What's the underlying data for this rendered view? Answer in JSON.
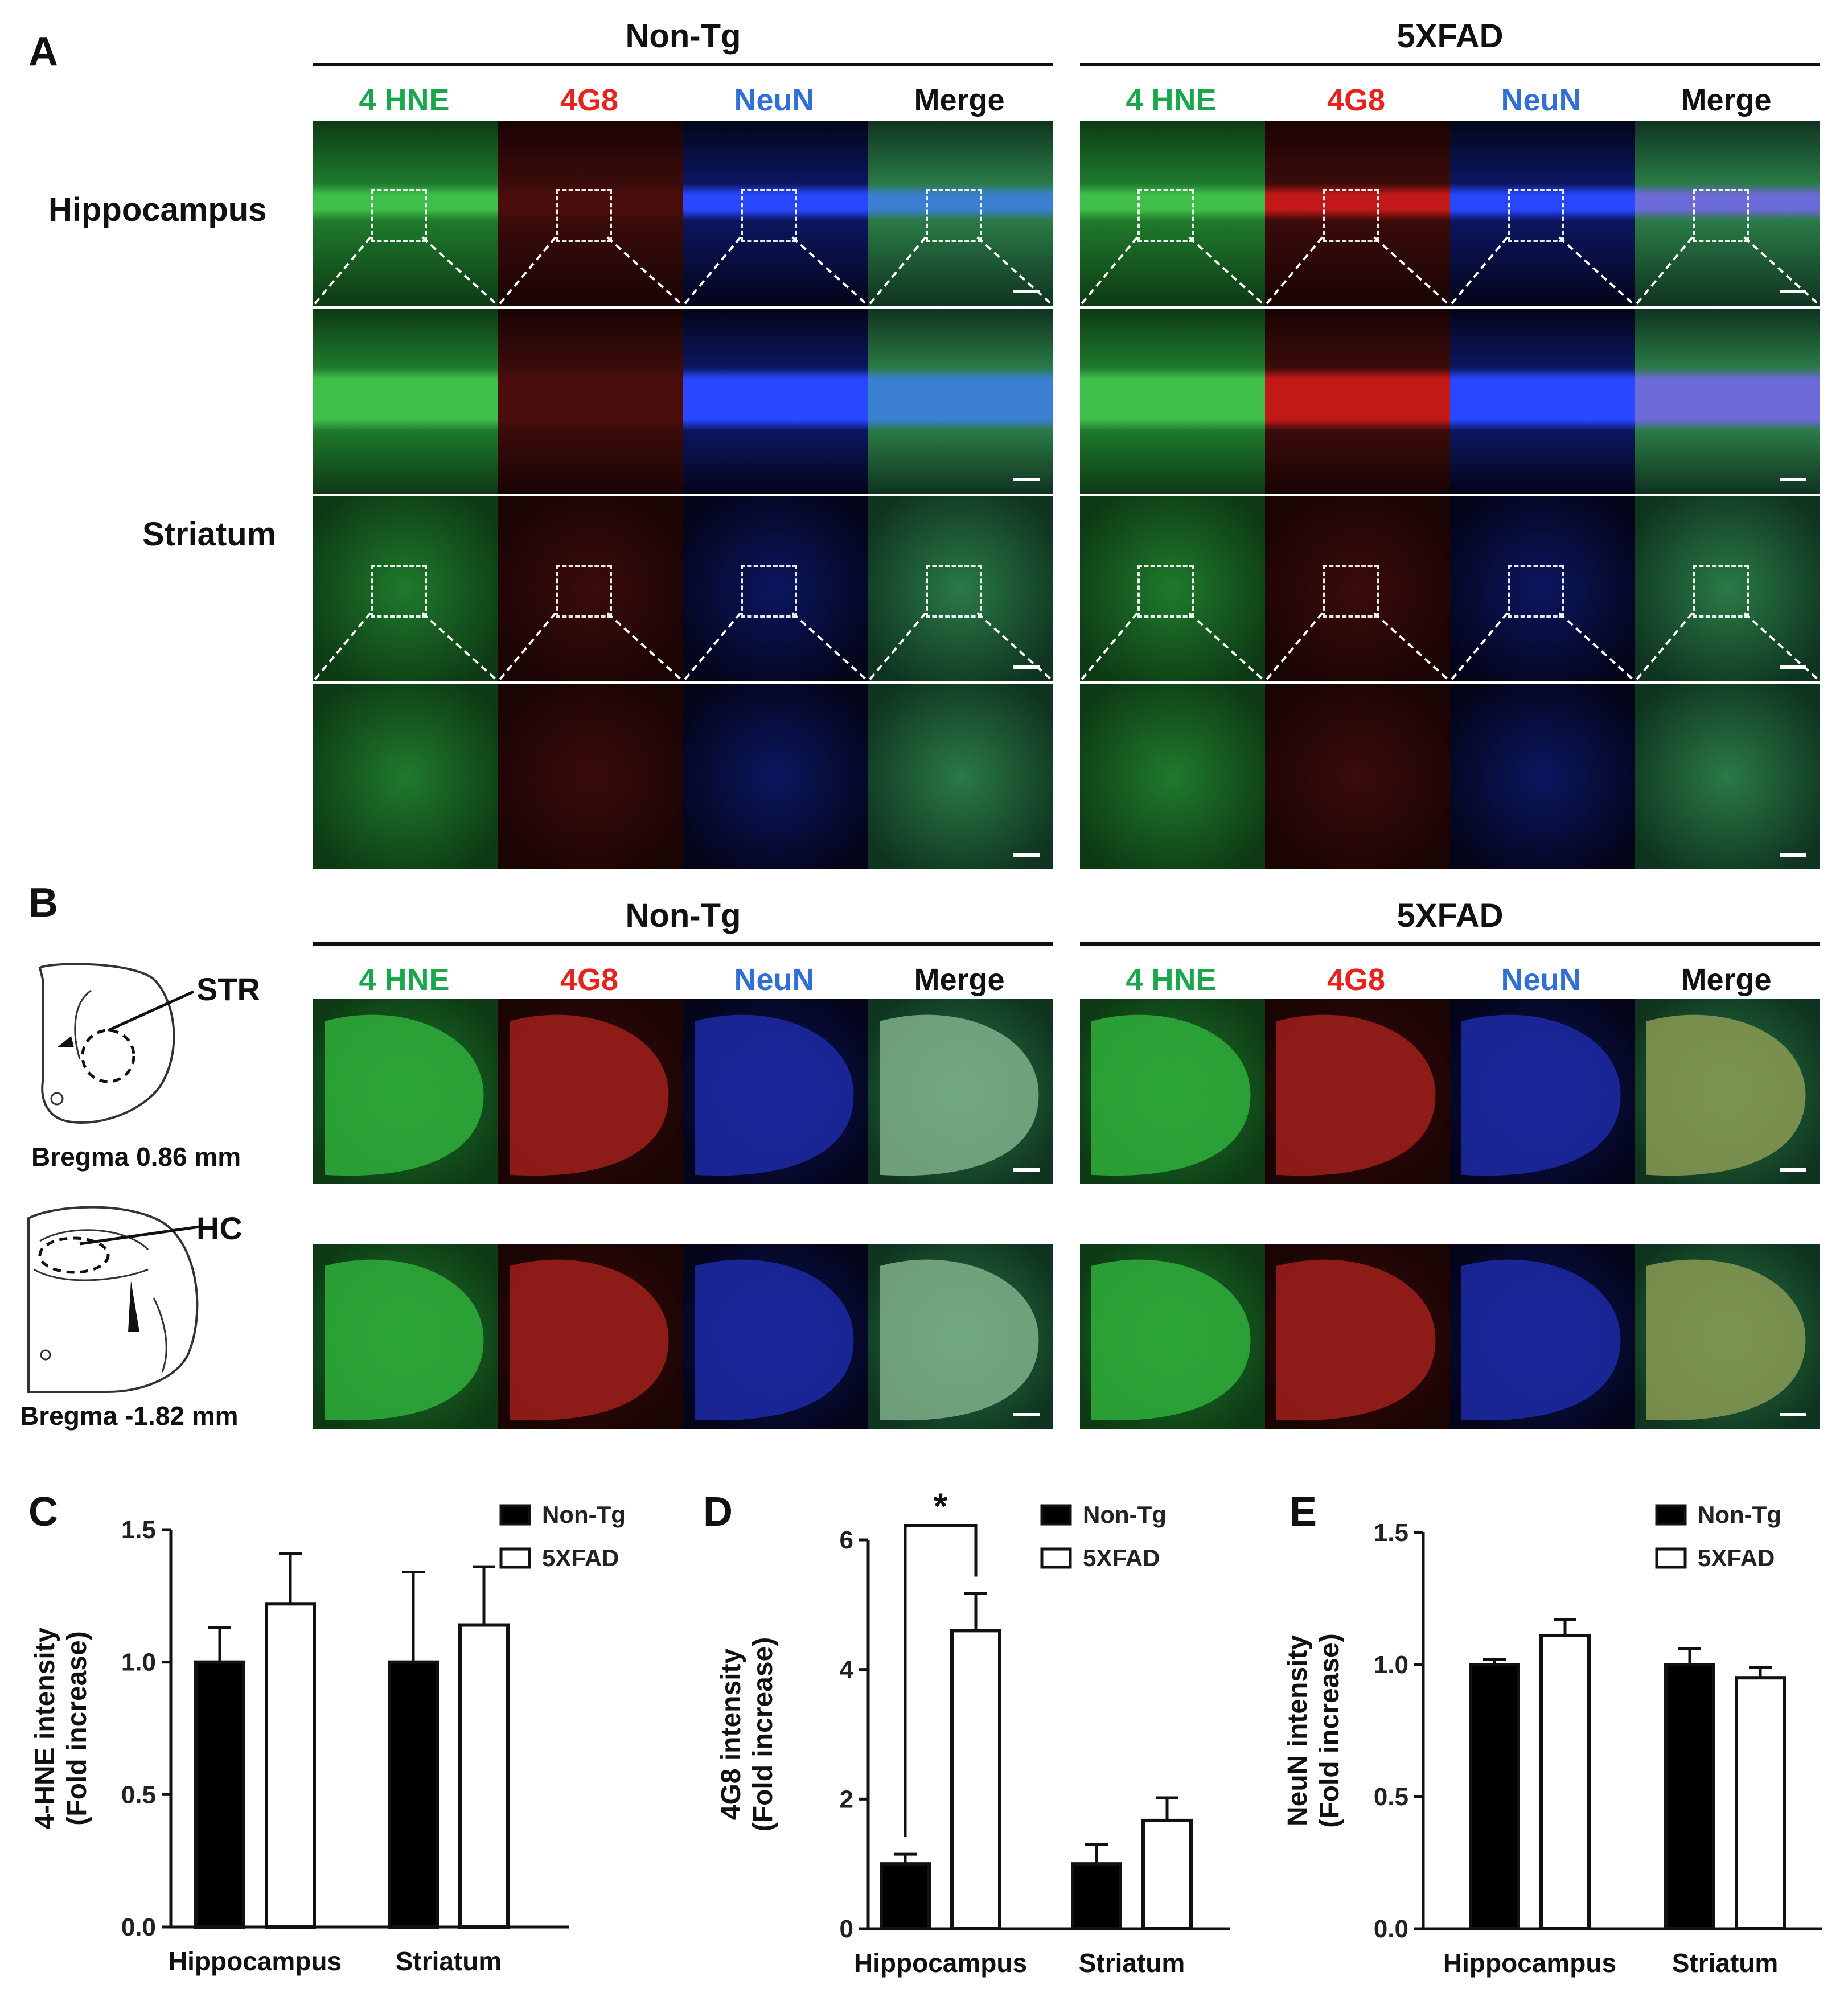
{
  "figure": {
    "panels": {
      "A": "A",
      "B": "B",
      "C": "C",
      "D": "D",
      "E": "E"
    },
    "groups": {
      "non_tg": "Non-Tg",
      "fxad": "5XFAD"
    },
    "channels": {
      "hne": "4 HNE",
      "g8": "4G8",
      "neun": "NeuN",
      "merge": "Merge"
    },
    "channel_colors": {
      "hne": "#1aa64a",
      "g8": "#e8221e",
      "neun": "#2f6fd6",
      "merge": "#111111"
    },
    "row_labels": {
      "hippocampus": "Hippocampus",
      "striatum": "Striatum"
    },
    "atlas": {
      "str_label": "STR",
      "hc_label": "HC",
      "bregma_str": "Bregma 0.86 mm",
      "bregma_hc": "Bregma -1.82 mm"
    }
  },
  "chart_data": [
    {
      "type": "bar",
      "panel": "C",
      "categories": [
        "Hippocampus",
        "Striatum"
      ],
      "ylabel": "4-HNE intensity\n(Fold increase)",
      "ylim": [
        0,
        1.5
      ],
      "yticks": [
        "0.0",
        "0.5",
        "1.0",
        "1.5"
      ],
      "legend": "top-right",
      "series": [
        {
          "name": "Non-Tg",
          "values": [
            1.0,
            1.0
          ],
          "errors": [
            0.13,
            0.34
          ],
          "fill": "#000000"
        },
        {
          "name": "5XFAD",
          "values": [
            1.22,
            1.14
          ],
          "errors": [
            0.19,
            0.22
          ],
          "fill": "#ffffff"
        }
      ],
      "annotations": []
    },
    {
      "type": "bar",
      "panel": "D",
      "categories": [
        "Hippocampus",
        "Striatum"
      ],
      "ylabel": "4G8 intensity\n(Fold increase)",
      "ylim": [
        0,
        6
      ],
      "yticks": [
        "0",
        "2",
        "4",
        "6"
      ],
      "legend": "top-right",
      "series": [
        {
          "name": "Non-Tg",
          "values": [
            1.0,
            1.0
          ],
          "errors": [
            0.15,
            0.3
          ],
          "fill": "#000000"
        },
        {
          "name": "5XFAD",
          "values": [
            4.6,
            1.67
          ],
          "errors": [
            0.57,
            0.35
          ],
          "fill": "#ffffff"
        }
      ],
      "annotations": [
        {
          "text": "*",
          "between": "Hippocampus"
        }
      ]
    },
    {
      "type": "bar",
      "panel": "E",
      "categories": [
        "Hippocampus",
        "Striatum"
      ],
      "ylabel": "NeuN intensity\n(Fold increase)",
      "ylim": [
        0,
        1.5
      ],
      "yticks": [
        "0.0",
        "0.5",
        "1.0",
        "1.5"
      ],
      "legend": "top-right",
      "series": [
        {
          "name": "Non-Tg",
          "values": [
            1.0,
            1.0
          ],
          "errors": [
            0.02,
            0.06
          ],
          "fill": "#000000"
        },
        {
          "name": "5XFAD",
          "values": [
            1.11,
            0.95
          ],
          "errors": [
            0.06,
            0.04
          ],
          "fill": "#ffffff"
        }
      ],
      "annotations": []
    }
  ]
}
